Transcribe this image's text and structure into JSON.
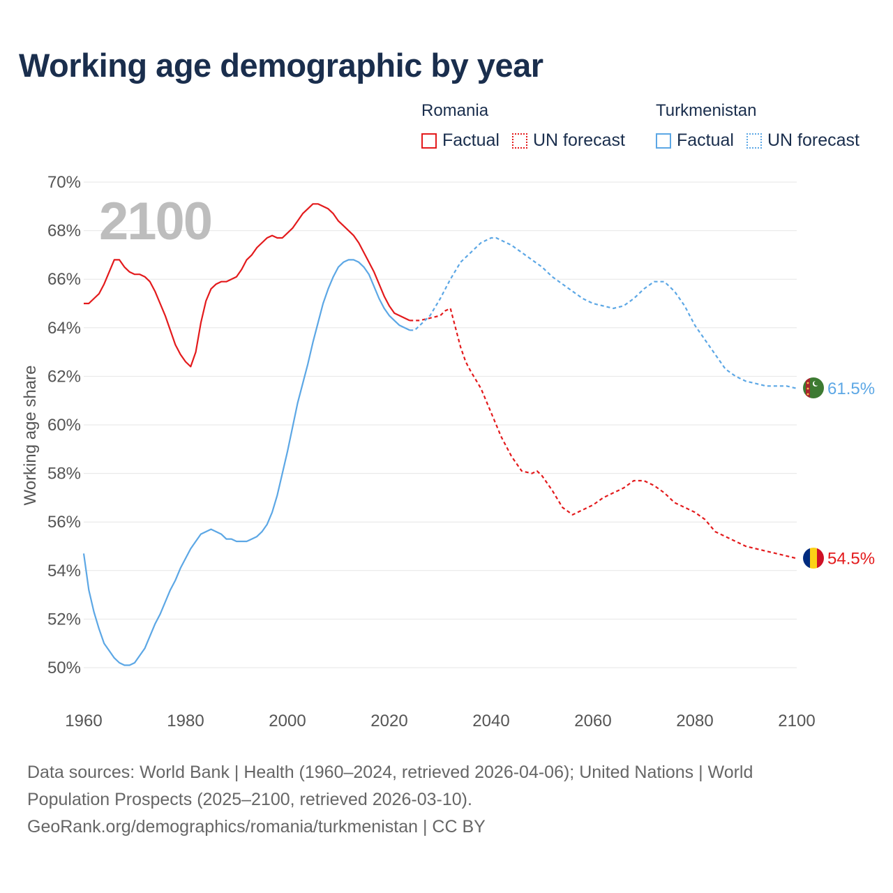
{
  "title": "Working age demographic by year",
  "legend": [
    {
      "group": "Romania",
      "items": [
        {
          "label": "Factual",
          "style": "solid",
          "color": "#e31a1c"
        },
        {
          "label": "UN forecast",
          "style": "dotted",
          "color": "#e31a1c"
        }
      ]
    },
    {
      "group": "Turkmenistan",
      "items": [
        {
          "label": "Factual",
          "style": "solid",
          "color": "#5ca7e5"
        },
        {
          "label": "UN forecast",
          "style": "dotted",
          "color": "#5ca7e5"
        }
      ]
    }
  ],
  "source": {
    "line1": "Data sources: World Bank | Health (1960–2024, retrieved 2026-04-06); United Nations | World",
    "line2": "Population Prospects (2025–2100, retrieved 2026-03-10).",
    "line3": "GeoRank.org/demographics/romania/turkmenistan | CC BY"
  },
  "chart_data": {
    "type": "line",
    "title": "Working age demographic by year",
    "ylabel": "Working age share",
    "xlabel": "",
    "xlim": [
      1960,
      2100
    ],
    "ylim": [
      49,
      70.5
    ],
    "xticks": [
      1960,
      1980,
      2000,
      2020,
      2040,
      2060,
      2080,
      2100
    ],
    "yticks": [
      50,
      52,
      54,
      56,
      58,
      60,
      62,
      64,
      66,
      68,
      70
    ],
    "ytick_labels": [
      "50%",
      "52%",
      "54%",
      "56%",
      "58%",
      "60%",
      "62%",
      "64%",
      "66%",
      "68%",
      "70%"
    ],
    "grid": true,
    "year_watermark": "2100",
    "series": [
      {
        "name": "Romania",
        "color": "#e31a1c",
        "end_label": "54.5%",
        "factual": {
          "x": [
            1960,
            1961,
            1962,
            1963,
            1964,
            1965,
            1966,
            1967,
            1968,
            1969,
            1970,
            1971,
            1972,
            1973,
            1974,
            1975,
            1976,
            1977,
            1978,
            1979,
            1980,
            1981,
            1982,
            1983,
            1984,
            1985,
            1986,
            1987,
            1988,
            1989,
            1990,
            1991,
            1992,
            1993,
            1994,
            1995,
            1996,
            1997,
            1998,
            1999,
            2000,
            2001,
            2002,
            2003,
            2004,
            2005,
            2006,
            2007,
            2008,
            2009,
            2010,
            2011,
            2012,
            2013,
            2014,
            2015,
            2016,
            2017,
            2018,
            2019,
            2020,
            2021,
            2022,
            2023,
            2024
          ],
          "y": [
            65.0,
            65.0,
            65.2,
            65.4,
            65.8,
            66.3,
            66.8,
            66.8,
            66.5,
            66.3,
            66.2,
            66.2,
            66.1,
            65.9,
            65.5,
            65.0,
            64.5,
            63.9,
            63.3,
            62.9,
            62.6,
            62.4,
            63.0,
            64.2,
            65.1,
            65.6,
            65.8,
            65.9,
            65.9,
            66.0,
            66.1,
            66.4,
            66.8,
            67.0,
            67.3,
            67.5,
            67.7,
            67.8,
            67.7,
            67.7,
            67.9,
            68.1,
            68.4,
            68.7,
            68.9,
            69.1,
            69.1,
            69.0,
            68.9,
            68.7,
            68.4,
            68.2,
            68.0,
            67.8,
            67.5,
            67.1,
            66.7,
            66.3,
            65.8,
            65.3,
            64.9,
            64.6,
            64.5,
            64.4,
            64.3
          ]
        },
        "forecast": {
          "x": [
            2024,
            2026,
            2028,
            2030,
            2031,
            2032,
            2033,
            2034,
            2035,
            2036,
            2038,
            2040,
            2042,
            2044,
            2046,
            2048,
            2049,
            2050,
            2052,
            2054,
            2056,
            2057,
            2058,
            2060,
            2062,
            2064,
            2066,
            2068,
            2070,
            2072,
            2074,
            2076,
            2078,
            2080,
            2082,
            2084,
            2086,
            2088,
            2090,
            2092,
            2094,
            2096,
            2098,
            2100
          ],
          "y": [
            64.3,
            64.3,
            64.4,
            64.5,
            64.7,
            64.8,
            64.0,
            63.2,
            62.6,
            62.2,
            61.5,
            60.5,
            59.5,
            58.7,
            58.1,
            58.0,
            58.1,
            57.9,
            57.3,
            56.6,
            56.3,
            56.4,
            56.5,
            56.7,
            57.0,
            57.2,
            57.4,
            57.7,
            57.7,
            57.5,
            57.2,
            56.8,
            56.6,
            56.4,
            56.1,
            55.6,
            55.4,
            55.2,
            55.0,
            54.9,
            54.8,
            54.7,
            54.6,
            54.5
          ]
        }
      },
      {
        "name": "Turkmenistan",
        "color": "#5ca7e5",
        "end_label": "61.5%",
        "factual": {
          "x": [
            1960,
            1961,
            1962,
            1963,
            1964,
            1965,
            1966,
            1967,
            1968,
            1969,
            1970,
            1971,
            1972,
            1973,
            1974,
            1975,
            1976,
            1977,
            1978,
            1979,
            1980,
            1981,
            1982,
            1983,
            1984,
            1985,
            1986,
            1987,
            1988,
            1989,
            1990,
            1991,
            1992,
            1993,
            1994,
            1995,
            1996,
            1997,
            1998,
            1999,
            2000,
            2001,
            2002,
            2003,
            2004,
            2005,
            2006,
            2007,
            2008,
            2009,
            2010,
            2011,
            2012,
            2013,
            2014,
            2015,
            2016,
            2017,
            2018,
            2019,
            2020,
            2021,
            2022,
            2023,
            2024
          ],
          "y": [
            54.7,
            53.2,
            52.3,
            51.6,
            51.0,
            50.7,
            50.4,
            50.2,
            50.1,
            50.1,
            50.2,
            50.5,
            50.8,
            51.3,
            51.8,
            52.2,
            52.7,
            53.2,
            53.6,
            54.1,
            54.5,
            54.9,
            55.2,
            55.5,
            55.6,
            55.7,
            55.6,
            55.5,
            55.3,
            55.3,
            55.2,
            55.2,
            55.2,
            55.3,
            55.4,
            55.6,
            55.9,
            56.4,
            57.1,
            58.0,
            58.9,
            59.9,
            60.9,
            61.7,
            62.5,
            63.4,
            64.2,
            65.0,
            65.6,
            66.1,
            66.5,
            66.7,
            66.8,
            66.8,
            66.7,
            66.5,
            66.2,
            65.7,
            65.2,
            64.8,
            64.5,
            64.3,
            64.1,
            64.0,
            63.9
          ]
        },
        "forecast": {
          "x": [
            2024,
            2025,
            2026,
            2028,
            2030,
            2032,
            2034,
            2036,
            2038,
            2040,
            2041,
            2042,
            2044,
            2046,
            2048,
            2050,
            2052,
            2054,
            2056,
            2058,
            2060,
            2062,
            2064,
            2066,
            2068,
            2070,
            2072,
            2074,
            2076,
            2078,
            2080,
            2082,
            2084,
            2086,
            2088,
            2090,
            2092,
            2094,
            2096,
            2098,
            2100
          ],
          "y": [
            63.9,
            63.9,
            64.1,
            64.5,
            65.2,
            66.0,
            66.7,
            67.1,
            67.5,
            67.7,
            67.7,
            67.6,
            67.4,
            67.1,
            66.8,
            66.5,
            66.1,
            65.8,
            65.5,
            65.2,
            65.0,
            64.9,
            64.8,
            64.9,
            65.2,
            65.6,
            65.9,
            65.9,
            65.5,
            64.9,
            64.1,
            63.5,
            62.9,
            62.3,
            62.0,
            61.8,
            61.7,
            61.6,
            61.6,
            61.6,
            61.5
          ]
        }
      }
    ]
  }
}
